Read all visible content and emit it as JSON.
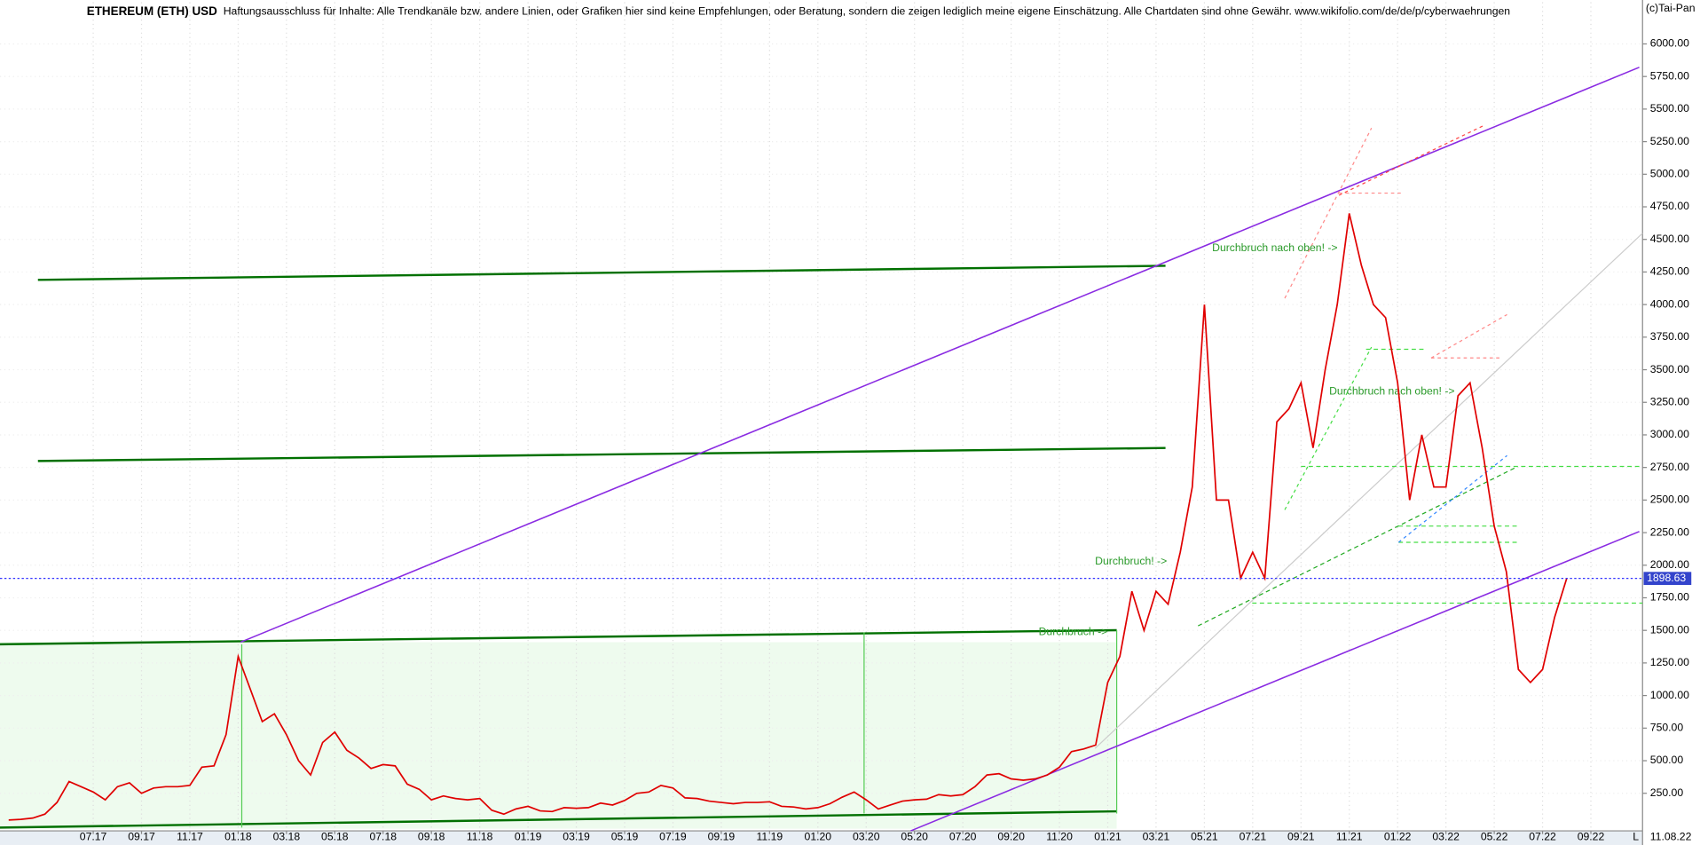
{
  "chart_data": {
    "type": "line",
    "title": "ETHEREUM (ETH) USD",
    "subtitle": "Haftungsausschluss für Inhalte: Alle Trendkanäle bzw. andere Linien, oder Grafiken hier sind keine Empfehlungen, oder Beratung, sondern die zeigen lediglich meine eigene Einschätzung. Alle Chartdaten sind ohne Gewähr.  www.wikifolio.com/de/de/p/cyberwaehrungen",
    "source": "(c)Tai-Pan",
    "date_label": "11.08.22",
    "corner_label": "L",
    "annotations": [
      "Durchbruch nach oben! ->",
      "Durchbruch nach oben! ->",
      "Durchbruch! ->",
      "Durchbruch ->"
    ],
    "categories": [
      null,
      null,
      null,
      null,
      null,
      null,
      null,
      "07.17",
      null,
      null,
      null,
      "09.17",
      null,
      null,
      null,
      "11.17",
      null,
      null,
      null,
      "01.18",
      null,
      null,
      null,
      "03.18",
      null,
      null,
      null,
      "05.18",
      null,
      null,
      null,
      "07.18",
      null,
      null,
      null,
      "09.18",
      null,
      null,
      null,
      "11.18",
      null,
      null,
      null,
      "01.19",
      null,
      null,
      null,
      "03.19",
      null,
      null,
      null,
      "05.19",
      null,
      null,
      null,
      "07.19",
      null,
      null,
      null,
      "09.19",
      null,
      null,
      null,
      "11.19",
      null,
      null,
      null,
      "01.20",
      null,
      null,
      null,
      "03.20",
      null,
      null,
      null,
      "05.20",
      null,
      null,
      null,
      "07.20",
      null,
      null,
      null,
      "09.20",
      null,
      null,
      null,
      "11.20",
      null,
      null,
      null,
      "01.21",
      null,
      null,
      null,
      "03.21",
      null,
      null,
      null,
      "05.21",
      null,
      null,
      null,
      "07.21",
      null,
      null,
      null,
      "09.21",
      null,
      null,
      null,
      "11.21",
      null,
      null,
      null,
      "01.22",
      null,
      null,
      null,
      "03.22",
      null,
      null,
      null,
      "05.22",
      null,
      null,
      null,
      "07.22",
      null,
      null,
      null,
      "09.22"
    ],
    "values": [
      45,
      50,
      60,
      90,
      180,
      340,
      300,
      260,
      200,
      300,
      330,
      250,
      290,
      300,
      300,
      310,
      450,
      460,
      700,
      1300,
      1050,
      800,
      860,
      700,
      500,
      390,
      640,
      720,
      580,
      520,
      440,
      470,
      460,
      320,
      280,
      200,
      230,
      210,
      200,
      210,
      120,
      90,
      130,
      150,
      115,
      110,
      140,
      135,
      140,
      175,
      160,
      195,
      250,
      260,
      310,
      290,
      215,
      210,
      190,
      180,
      170,
      180,
      180,
      185,
      150,
      145,
      130,
      140,
      170,
      220,
      260,
      200,
      130,
      160,
      190,
      200,
      205,
      240,
      230,
      240,
      300,
      390,
      400,
      360,
      350,
      360,
      390,
      450,
      570,
      590,
      620,
      1100,
      1300,
      1800,
      1500,
      1800,
      1700,
      2100,
      2600,
      4000,
      2500,
      2500,
      1900,
      2100,
      1900,
      3100,
      3200,
      3400,
      2900,
      3500,
      4000,
      4700,
      4300,
      4000,
      3900,
      3400,
      2500,
      3000,
      2600,
      2600,
      3300,
      3400,
      2900,
      2300,
      1950,
      1200,
      1100,
      1200,
      1600,
      1900,
      null,
      null
    ],
    "color": "#e00000",
    "last_price": 1898.63,
    "ylim": [
      -30,
      6320
    ],
    "yticks": [
      {
        "value": 250,
        "label": "250.00"
      },
      {
        "value": 500,
        "label": "500.00"
      },
      {
        "value": 750,
        "label": "750.00"
      },
      {
        "value": 1000,
        "label": "1000.00"
      },
      {
        "value": 1250,
        "label": "1250.00"
      },
      {
        "value": 1500,
        "label": "1500.00"
      },
      {
        "value": 1750,
        "label": "1750.00"
      },
      {
        "value": 2000,
        "label": "2000.00"
      },
      {
        "value": 2250,
        "label": "2250.00"
      },
      {
        "value": 2500,
        "label": "2500.00"
      },
      {
        "value": 2750,
        "label": "2750.00"
      },
      {
        "value": 3000,
        "label": "3000.00"
      },
      {
        "value": 3250,
        "label": "3250.00"
      },
      {
        "value": 3500,
        "label": "3500.00"
      },
      {
        "value": 3750,
        "label": "3750.00"
      },
      {
        "value": 4000,
        "label": "4000.00"
      },
      {
        "value": 4250,
        "label": "4250.00"
      },
      {
        "value": 4500,
        "label": "4500.00"
      },
      {
        "value": 4750,
        "label": "4750.00"
      },
      {
        "value": 5000,
        "label": "5000.00"
      },
      {
        "value": 5250,
        "label": "5250.00"
      },
      {
        "value": 5500,
        "label": "5500.00"
      },
      {
        "value": 5750,
        "label": "5750.00"
      },
      {
        "value": 6000,
        "label": "6000.00"
      }
    ],
    "grid": true
  }
}
